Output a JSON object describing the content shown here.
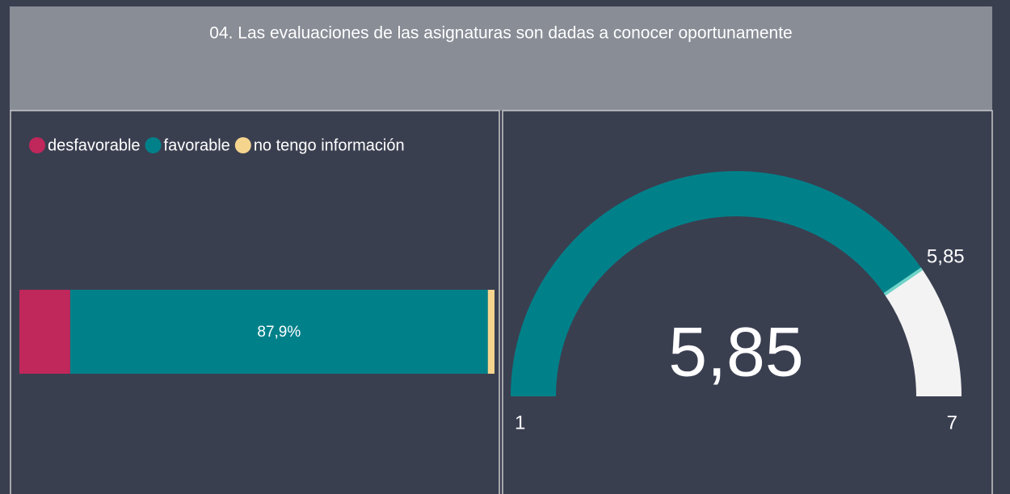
{
  "header": {
    "title": "04. Las evaluaciones de las asignaturas son dadas a conocer oportunamente"
  },
  "chart_data": [
    {
      "type": "bar",
      "orientation": "horizontal",
      "stacked": "percent",
      "xlim": [
        0,
        100
      ],
      "series": [
        {
          "name": "desfavorable",
          "color": "#c0275b",
          "values": [
            10.7
          ]
        },
        {
          "name": "favorable",
          "color": "#00818a",
          "values": [
            87.9
          ],
          "value_labels": [
            "87,9%"
          ]
        },
        {
          "name": "no tengo información",
          "color": "#f5d58e",
          "values": [
            1.4
          ]
        }
      ]
    },
    {
      "type": "gauge",
      "value": 5.85,
      "value_label": "5,85",
      "target": 5.85,
      "target_label": "5,85",
      "ylim": [
        1,
        7
      ],
      "color": "#00818a",
      "track_color": "#f3f3f3",
      "target_color": "#6fd3c8"
    }
  ]
}
